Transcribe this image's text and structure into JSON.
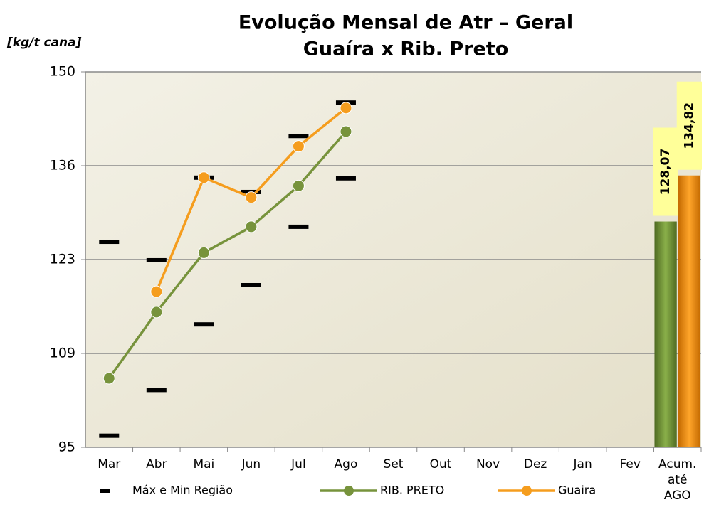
{
  "chart_data": {
    "type": "line",
    "title": "Evolução Mensal de Atr – Geral",
    "subtitle": "Guaíra x Rib. Preto",
    "y_label": "[kg/t cana]",
    "categories": [
      "Mar",
      "Abr",
      "Mai",
      "Jun",
      "Jul",
      "Ago",
      "Set",
      "Out",
      "Nov",
      "Dez",
      "Jan",
      "Fev",
      "Acum. até AGO"
    ],
    "ylim": [
      95,
      150
    ],
    "yticks": [
      95,
      {
        "value": 108.75,
        "label": "109"
      },
      {
        "value": 122.5,
        "label": "123"
      },
      {
        "value": 136.25,
        "label": "136"
      },
      150
    ],
    "grid": true,
    "series": [
      {
        "name": "Máx e Min Região",
        "type": "range",
        "color": "#000000",
        "max": [
          125.1,
          122.4,
          134.5,
          132.4,
          140.6,
          145.5,
          null,
          null,
          null,
          null,
          null,
          null,
          null
        ],
        "min": [
          96.7,
          103.4,
          113.0,
          118.75,
          127.3,
          134.4,
          null,
          null,
          null,
          null,
          null,
          null,
          null
        ]
      },
      {
        "name": "RIB. PRETO",
        "type": "line",
        "color": "#77933c",
        "values": [
          105.1,
          114.8,
          123.5,
          127.3,
          133.3,
          141.25,
          null,
          null,
          null,
          null,
          null,
          null,
          null
        ],
        "total": 128.07,
        "total_label": "128,07"
      },
      {
        "name": "Guaira",
        "type": "line",
        "color": "#f59d1e",
        "values": [
          null,
          117.8,
          134.5,
          131.6,
          139.1,
          144.7,
          null,
          null,
          null,
          null,
          null,
          null,
          null
        ],
        "total": 134.82,
        "total_label": "134,82"
      }
    ]
  }
}
